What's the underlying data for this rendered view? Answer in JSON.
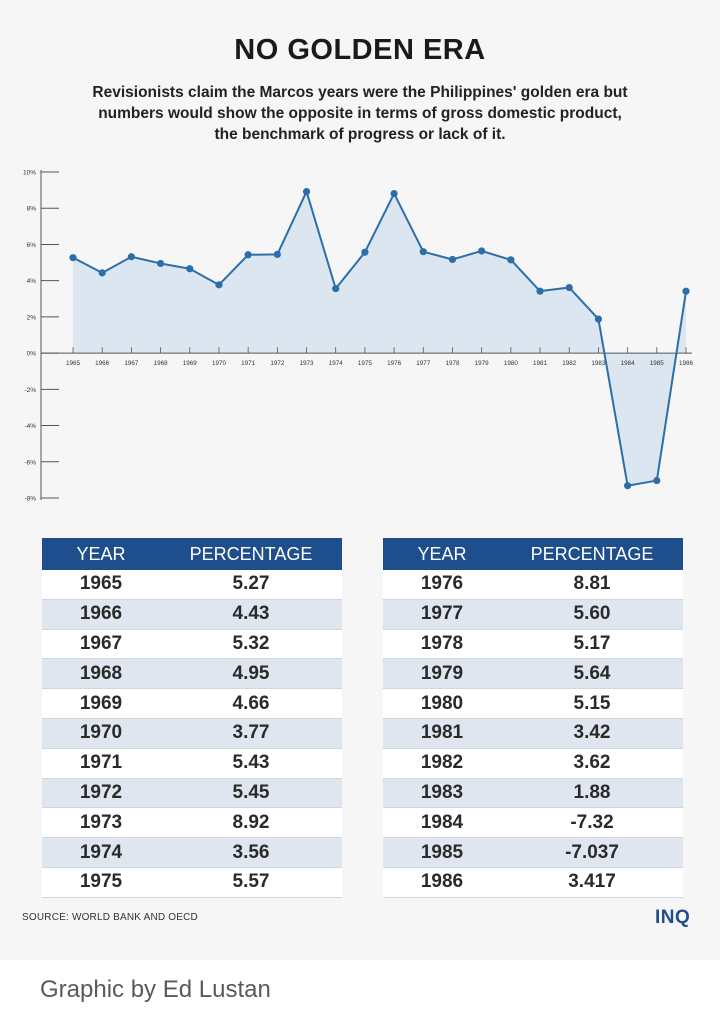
{
  "title": "NO GOLDEN ERA",
  "subtitle_lines": [
    "Revisionists claim the Marcos years were the Philippines' golden era but",
    "numbers would show the opposite in terms of gross domestic product,",
    "the benchmark of progress or lack of it."
  ],
  "chart_data": {
    "type": "area",
    "x": [
      "1965",
      "1966",
      "1967",
      "1968",
      "1969",
      "1970",
      "1971",
      "1972",
      "1973",
      "1974",
      "1975",
      "1976",
      "1977",
      "1978",
      "1979",
      "1980",
      "1981",
      "1982",
      "1983",
      "1984",
      "1985",
      "1986"
    ],
    "values": [
      5.27,
      4.43,
      5.32,
      4.95,
      4.66,
      3.77,
      5.43,
      5.45,
      8.92,
      3.56,
      5.57,
      8.81,
      5.6,
      5.17,
      5.64,
      5.15,
      3.42,
      3.62,
      1.88,
      -7.32,
      -7.037,
      3.417
    ],
    "y_ticks": [
      "10%",
      "8%",
      "6%",
      "4%",
      "2%",
      "0%",
      "-2%",
      "-4%",
      "-6%",
      "-8%"
    ],
    "ylim": [
      -8,
      10
    ],
    "grid": false,
    "line_color": "#2c6fa8",
    "fill_color": "#dce6f0"
  },
  "table": {
    "headers": [
      "YEAR",
      "PERCENTAGE"
    ],
    "left_rows": [
      [
        "1965",
        "5.27"
      ],
      [
        "1966",
        "4.43"
      ],
      [
        "1967",
        "5.32"
      ],
      [
        "1968",
        "4.95"
      ],
      [
        "1969",
        "4.66"
      ],
      [
        "1970",
        "3.77"
      ],
      [
        "1971",
        "5.43"
      ],
      [
        "1972",
        "5.45"
      ],
      [
        "1973",
        "8.92"
      ],
      [
        "1974",
        "3.56"
      ],
      [
        "1975",
        "5.57"
      ]
    ],
    "right_rows": [
      [
        "1976",
        "8.81"
      ],
      [
        "1977",
        "5.60"
      ],
      [
        "1978",
        "5.17"
      ],
      [
        "1979",
        "5.64"
      ],
      [
        "1980",
        "5.15"
      ],
      [
        "1981",
        "3.42"
      ],
      [
        "1982",
        "3.62"
      ],
      [
        "1983",
        "1.88"
      ],
      [
        "1984",
        "-7.32"
      ],
      [
        "1985",
        "-7.037"
      ],
      [
        "1986",
        "3.417"
      ]
    ],
    "header_color": "#1f4e8c"
  },
  "source": "SOURCE: WORLD BANK AND OECD",
  "logo": "INQ",
  "credit": "Graphic by Ed Lustan"
}
